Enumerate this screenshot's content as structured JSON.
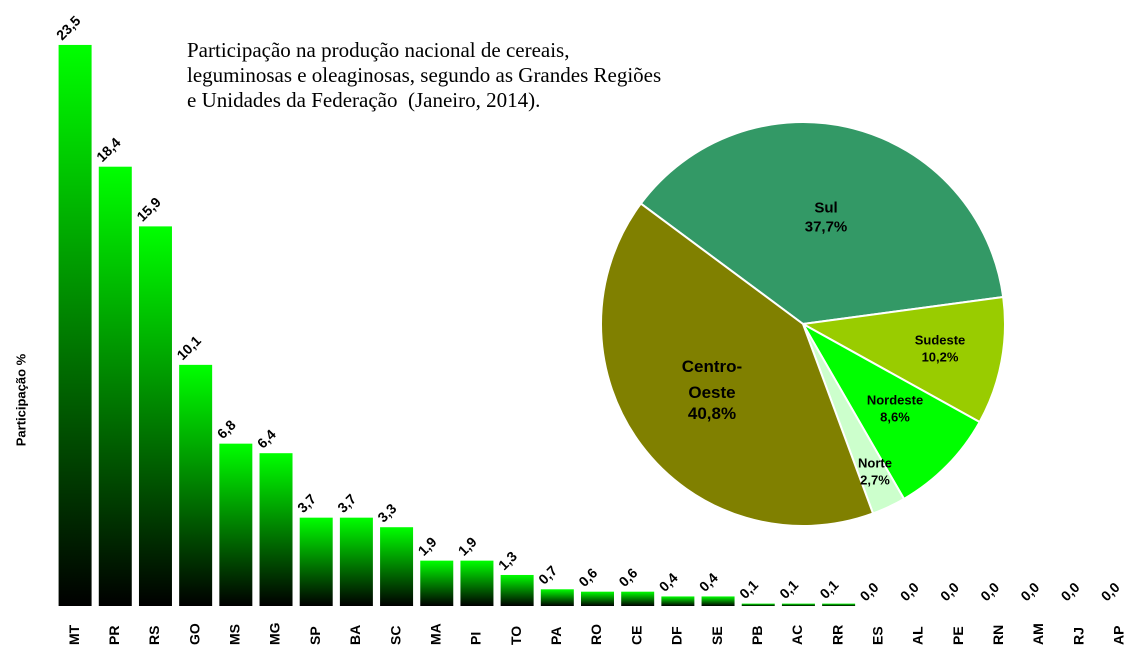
{
  "chart_data": [
    {
      "type": "bar",
      "title": "Participação na produção nacional de cereais, leguminosas e oleaginosas, segundo as Grandes Regiões e Unidades da Federação  (Janeiro, 2014).",
      "y_label": "Participação %",
      "categories": [
        "MT",
        "PR",
        "RS",
        "GO",
        "MS",
        "MG",
        "SP",
        "BA",
        "SC",
        "MA",
        "PI",
        "TO",
        "PA",
        "RO",
        "CE",
        "DF",
        "SE",
        "PB",
        "AC",
        "RR",
        "ES",
        "AL",
        "PE",
        "RN",
        "AM",
        "RJ",
        "AP"
      ],
      "values": [
        23.5,
        18.4,
        15.9,
        10.1,
        6.8,
        6.4,
        3.7,
        3.7,
        3.3,
        1.9,
        1.9,
        1.3,
        0.7,
        0.6,
        0.6,
        0.4,
        0.4,
        0.1,
        0.1,
        0.1,
        0.0,
        0.0,
        0.0,
        0.0,
        0.0,
        0.0,
        0.0
      ],
      "value_labels": [
        "23,5",
        "18,4",
        "15,9",
        "10,1",
        "6,8",
        "6,4",
        "3,7",
        "3,7",
        "3,3",
        "1,9",
        "1,9",
        "1,3",
        "0,7",
        "0,6",
        "0,6",
        "0,4",
        "0,4",
        "0,1",
        "0,1",
        "0,1",
        "0,0",
        "0,0",
        "0,0",
        "0,0",
        "0,0",
        "0,0",
        "0,0"
      ],
      "color": "#00ff00",
      "ylim": [
        0,
        24
      ]
    },
    {
      "type": "pie",
      "categories": [
        "Sul",
        "Sudeste",
        "Nordeste",
        "Norte",
        "Centro-Oeste"
      ],
      "values": [
        37.7,
        10.2,
        8.6,
        2.7,
        40.8
      ],
      "value_labels": [
        "37,7%",
        "10,2%",
        "8,6%",
        "2,7%",
        "40,8%"
      ],
      "colors": [
        "#339966",
        "#99cc00",
        "#00ff00",
        "#ccffcc",
        "#808000"
      ]
    }
  ]
}
